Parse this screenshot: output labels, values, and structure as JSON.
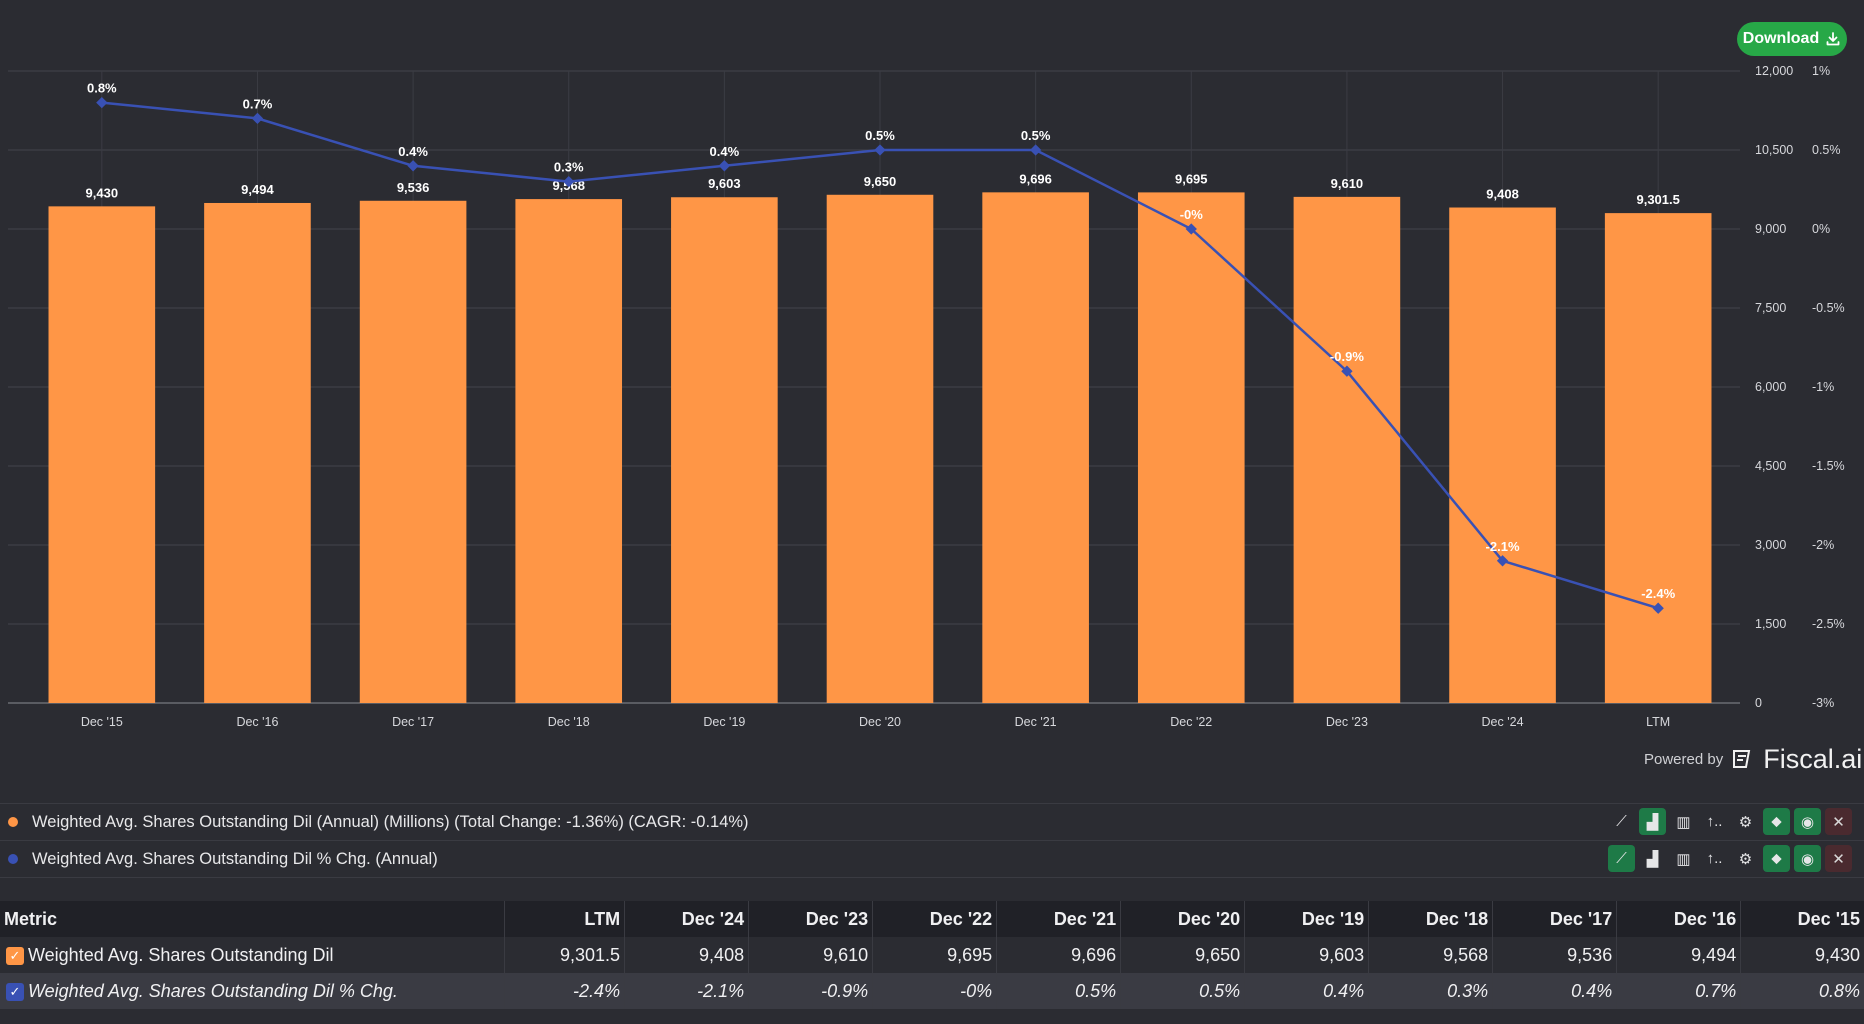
{
  "toolbar": {
    "download_label": "Download"
  },
  "footer": {
    "powered_label": "Powered by",
    "brand": "Fiscal.ai"
  },
  "colors": {
    "bar": "#ff9646",
    "line": "#3951b4",
    "accent_green": "#27a847"
  },
  "legend": [
    {
      "label": "Weighted Avg. Shares Outstanding Dil (Annual) (Millions) (Total Change: -1.36%) (CAGR: -0.14%)",
      "color": "#ff9646",
      "active_tool": "bar-chart-icon"
    },
    {
      "label": "Weighted Avg. Shares Outstanding Dil % Chg. (Annual)",
      "color": "#3951b4",
      "active_tool": "line-chart-icon"
    }
  ],
  "chart_data": {
    "type": "bar",
    "categories": [
      "Dec '15",
      "Dec '16",
      "Dec '17",
      "Dec '18",
      "Dec '19",
      "Dec '20",
      "Dec '21",
      "Dec '22",
      "Dec '23",
      "Dec '24",
      "LTM"
    ],
    "series": [
      {
        "type": "bar",
        "axis": "left",
        "values": [
          9430,
          9494,
          9536,
          9568,
          9603,
          9650,
          9696,
          9695,
          9610,
          9408,
          9301.5
        ],
        "labels": [
          "9,430",
          "9,494",
          "9,536",
          "9,568",
          "9,603",
          "9,650",
          "9,696",
          "9,695",
          "9,610",
          "9,408",
          "9,301.5"
        ]
      },
      {
        "type": "line",
        "axis": "right",
        "values": [
          0.8,
          0.7,
          0.4,
          0.3,
          0.4,
          0.5,
          0.5,
          0,
          -0.9,
          -2.1,
          -2.4
        ],
        "labels": [
          "0.8%",
          "0.7%",
          "0.4%",
          "0.3%",
          "0.4%",
          "0.5%",
          "0.5%",
          "-0%",
          "-0.9%",
          "-2.1%",
          "-2.4%"
        ]
      }
    ],
    "y_left": {
      "range": [
        0,
        12000
      ],
      "ticks": [
        "0",
        "1,500",
        "3,000",
        "4,500",
        "6,000",
        "7,500",
        "9,000",
        "10,500",
        "12,000"
      ]
    },
    "y_right": {
      "range": [
        -3,
        1
      ],
      "ticks": [
        "-3%",
        "-2.5%",
        "-2%",
        "-1.5%",
        "-1%",
        "-0.5%",
        "0%",
        "0.5%",
        "1%"
      ]
    },
    "grid": true
  },
  "table": {
    "headers": [
      "Metric",
      "LTM",
      "Dec '24",
      "Dec '23",
      "Dec '22",
      "Dec '21",
      "Dec '20",
      "Dec '19",
      "Dec '18",
      "Dec '17",
      "Dec '16",
      "Dec '15"
    ],
    "rows": [
      {
        "metric": "Weighted Avg. Shares Outstanding Dil",
        "checkbox_color": "#ff9646",
        "values": [
          "9,301.5",
          "9,408",
          "9,610",
          "9,695",
          "9,696",
          "9,650",
          "9,603",
          "9,568",
          "9,536",
          "9,494",
          "9,430"
        ]
      },
      {
        "metric": "Weighted Avg. Shares Outstanding Dil % Chg.",
        "checkbox_color": "#3951b4",
        "values": [
          "-2.4%",
          "-2.1%",
          "-0.9%",
          "-0%",
          "0.5%",
          "0.5%",
          "0.4%",
          "0.3%",
          "0.4%",
          "0.7%",
          "0.8%"
        ]
      }
    ]
  }
}
